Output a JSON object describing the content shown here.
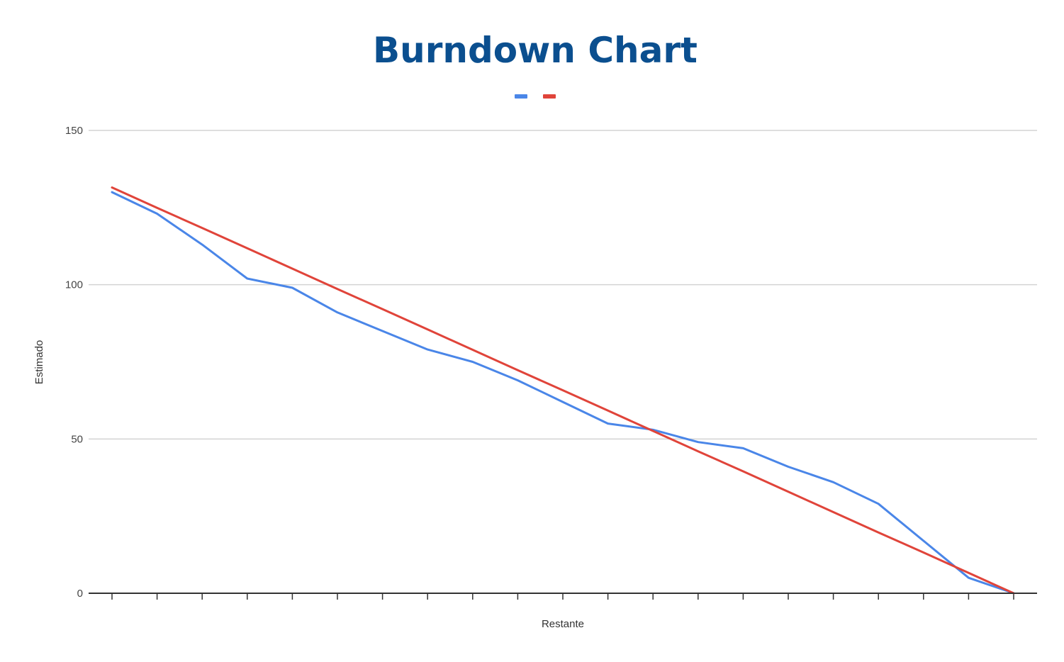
{
  "colors": {
    "title": "#0b4f8f",
    "estimado": "#4a86e8",
    "ideal": "#e0443a"
  },
  "chart_data": {
    "type": "line",
    "title": "Burndown Chart",
    "xlabel": "Restante",
    "ylabel": "Estimado",
    "ylim": [
      0,
      150
    ],
    "yticks": [
      "0",
      "50",
      "100",
      "150"
    ],
    "grid": true,
    "legend": "top-center",
    "x": [
      1,
      2,
      3,
      4,
      5,
      6,
      7,
      8,
      9,
      10,
      11,
      12,
      13,
      14,
      15,
      16,
      17,
      18,
      19,
      20,
      21
    ],
    "series": [
      {
        "color": "#4a86e8",
        "values": [
          130,
          123,
          113,
          102,
          99,
          91,
          85,
          79,
          75,
          69,
          62,
          55,
          53,
          49,
          47,
          41,
          36,
          29,
          17,
          5,
          0
        ]
      },
      {
        "color": "#e0443a",
        "values": [
          131.5,
          124.9,
          118.4,
          111.8,
          105.2,
          98.6,
          92.1,
          85.5,
          78.9,
          72.3,
          65.8,
          59.2,
          52.6,
          46.0,
          39.5,
          32.9,
          26.3,
          19.7,
          13.2,
          6.6,
          0
        ]
      }
    ]
  }
}
